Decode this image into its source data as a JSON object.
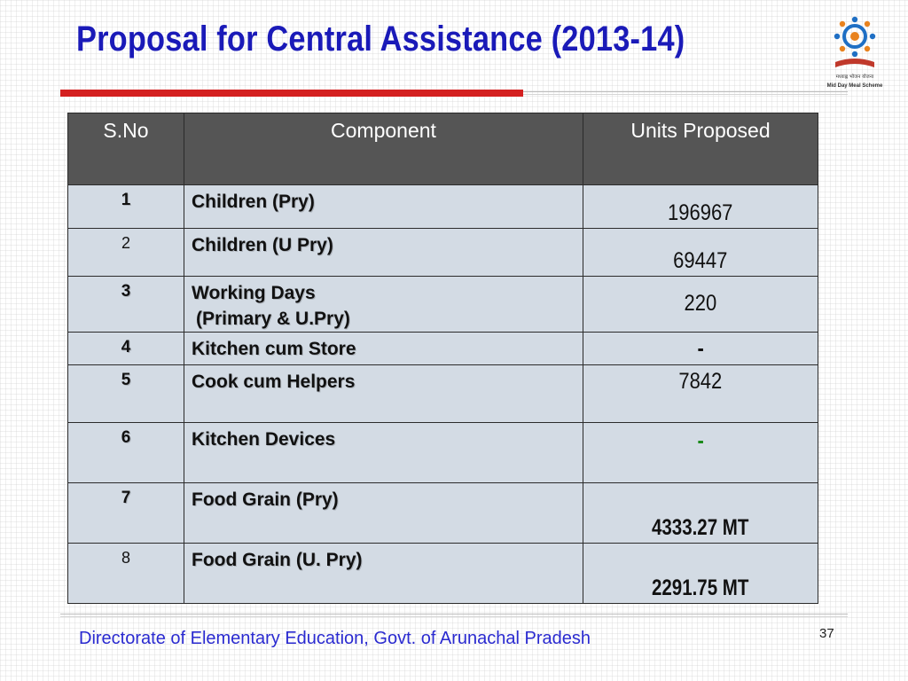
{
  "slide": {
    "title": "Proposal  for Central Assistance  (2013-14)",
    "logo": {
      "name": "mid-day-meal-scheme-logo",
      "hindi_text": "मध्याह्न भोजन योजना",
      "english_text": "Mid Day Meal Scheme",
      "colors": {
        "figures": "#1f6fc4",
        "accent": "#e8821e",
        "book": "#c0392b"
      }
    },
    "colors": {
      "title": "#1a1ab8",
      "rule": "#d42020",
      "header_bg": "#555555",
      "cell_bg": "#d3dbe4",
      "footer": "#2a2ad0",
      "green": "#1a8a1a"
    },
    "table": {
      "headers": {
        "sno": "S.No",
        "component": "Component",
        "units": "Units Proposed"
      },
      "rows": [
        {
          "sno": "1",
          "component": "Children (Pry)",
          "units": "196967"
        },
        {
          "sno": "2",
          "component": "Children  (U Pry)",
          "units": "69447"
        },
        {
          "sno": "3",
          "component": "Working Days",
          "component_line2": "(Primary & U.Pry)",
          "units": "220"
        },
        {
          "sno": "4",
          "component": "Kitchen cum Store",
          "units": "-"
        },
        {
          "sno": "5",
          "component": "Cook cum Helpers",
          "units": "7842"
        },
        {
          "sno": "6",
          "component": "Kitchen Devices",
          "units": "-"
        },
        {
          "sno": "7",
          "component": "Food Grain (Pry)",
          "units": "4333.27 MT"
        },
        {
          "sno": "8",
          "component": "Food Grain (U. Pry)",
          "units": "2291.75 MT"
        }
      ]
    },
    "footer": {
      "text": "Directorate of Elementary Education, Govt. of Arunachal Pradesh",
      "page_number": "37"
    }
  }
}
